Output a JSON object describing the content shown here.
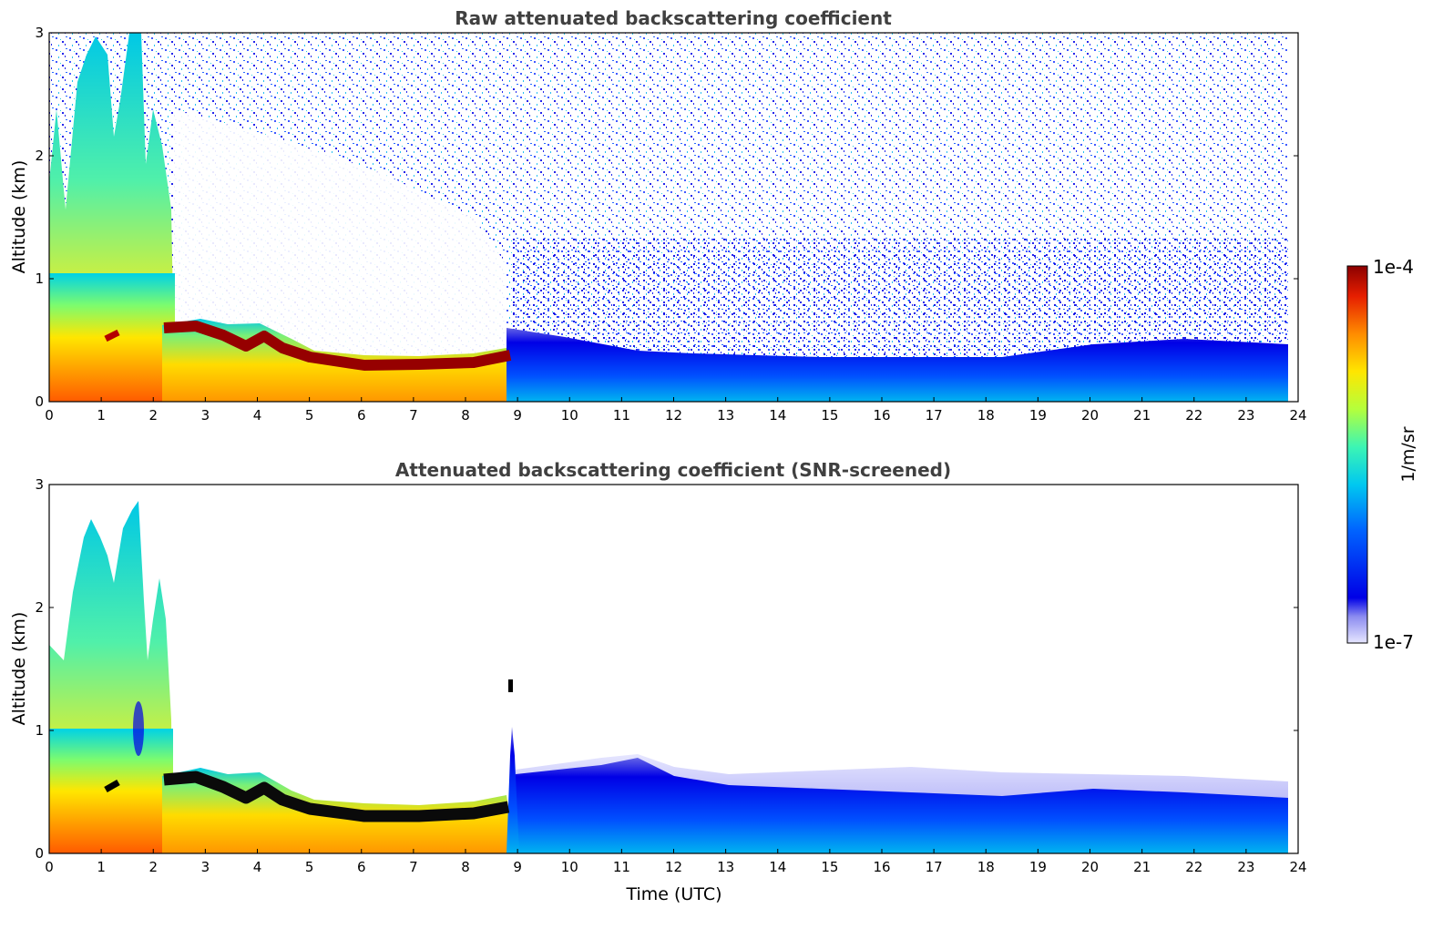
{
  "chart_data": [
    {
      "type": "heatmap",
      "title": "Raw attenuated backscattering coefficient",
      "xlabel": "",
      "ylabel": "Altitude (km)",
      "xlim": [
        0,
        24
      ],
      "ylim": [
        0,
        3
      ],
      "x_ticks": [
        "0",
        "1",
        "2",
        "3",
        "4",
        "5",
        "6",
        "7",
        "8",
        "9",
        "10",
        "11",
        "12",
        "13",
        "14",
        "15",
        "16",
        "17",
        "18",
        "19",
        "20",
        "21",
        "22",
        "23",
        "24"
      ],
      "y_ticks": [
        "0",
        "1",
        "2",
        "3"
      ],
      "colorscale": "log",
      "features": {
        "boundary_layer_top_km": [
          {
            "x": 2.2,
            "y": 0.6
          },
          {
            "x": 3.0,
            "y": 0.6
          },
          {
            "x": 4.0,
            "y": 0.55
          },
          {
            "x": 5.0,
            "y": 0.35
          },
          {
            "x": 6.0,
            "y": 0.3
          },
          {
            "x": 7.0,
            "y": 0.3
          },
          {
            "x": 8.0,
            "y": 0.32
          },
          {
            "x": 8.8,
            "y": 0.36
          }
        ],
        "cloud_columns_utc": [
          0.3,
          1.0,
          1.7,
          2.2
        ],
        "data_end_utc": 23.8
      }
    },
    {
      "type": "heatmap",
      "title": "Attenuated backscattering coefficient (SNR-screened)",
      "xlabel": "Time (UTC)",
      "ylabel": "Altitude (km)",
      "xlim": [
        0,
        24
      ],
      "ylim": [
        0,
        3
      ],
      "x_ticks": [
        "0",
        "1",
        "2",
        "3",
        "4",
        "5",
        "6",
        "7",
        "8",
        "9",
        "10",
        "11",
        "12",
        "13",
        "14",
        "15",
        "16",
        "17",
        "18",
        "19",
        "20",
        "21",
        "22",
        "23",
        "24"
      ],
      "y_ticks": [
        "0",
        "1",
        "2",
        "3"
      ],
      "colorscale": "log",
      "features": {
        "low_layer_top_km": [
          {
            "x": 9.0,
            "y": 0.6
          },
          {
            "x": 11.0,
            "y": 0.75
          },
          {
            "x": 12.0,
            "y": 0.65
          },
          {
            "x": 14.0,
            "y": 0.6
          },
          {
            "x": 18.0,
            "y": 0.55
          },
          {
            "x": 21.0,
            "y": 0.55
          },
          {
            "x": 23.8,
            "y": 0.5
          }
        ]
      }
    }
  ],
  "colorbar": {
    "label": "1/m/sr",
    "max_label": "1e-4",
    "min_label": "1e-7",
    "colors": [
      "#e6e6ff",
      "#b4b4f5",
      "#7878eb",
      "#0000e6",
      "#0050ff",
      "#00a0ff",
      "#00dcdc",
      "#50ff8c",
      "#c8ff32",
      "#ffe600",
      "#ffa000",
      "#ff5000",
      "#e60000",
      "#8c0000"
    ]
  }
}
